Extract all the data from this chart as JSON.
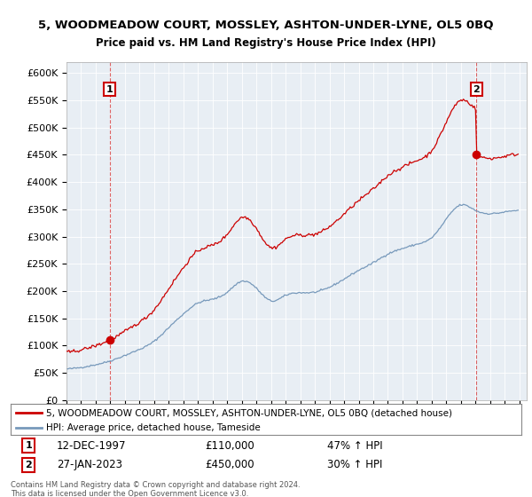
{
  "title": "5, WOODMEADOW COURT, MOSSLEY, ASHTON-UNDER-LYNE, OL5 0BQ",
  "subtitle": "Price paid vs. HM Land Registry's House Price Index (HPI)",
  "legend_line1": "5, WOODMEADOW COURT, MOSSLEY, ASHTON-UNDER-LYNE, OL5 0BQ (detached house)",
  "legend_line2": "HPI: Average price, detached house, Tameside",
  "sale1_date": "12-DEC-1997",
  "sale1_price": "£110,000",
  "sale1_hpi": "47% ↑ HPI",
  "sale1_year": 1997.95,
  "sale1_value": 110000,
  "sale2_date": "27-JAN-2023",
  "sale2_price": "£450,000",
  "sale2_hpi": "30% ↑ HPI",
  "sale2_year": 2023.07,
  "sale2_value": 450000,
  "copyright": "Contains HM Land Registry data © Crown copyright and database right 2024.\nThis data is licensed under the Open Government Licence v3.0.",
  "ylim": [
    0,
    620000
  ],
  "yticks": [
    0,
    50000,
    100000,
    150000,
    200000,
    250000,
    300000,
    350000,
    400000,
    450000,
    500000,
    550000,
    600000
  ],
  "xlim_start": 1995.0,
  "xlim_end": 2026.5,
  "red_color": "#cc0000",
  "blue_color": "#7799bb",
  "plot_bg_color": "#e8eef4",
  "bg_color": "#ffffff",
  "grid_color": "#ffffff"
}
